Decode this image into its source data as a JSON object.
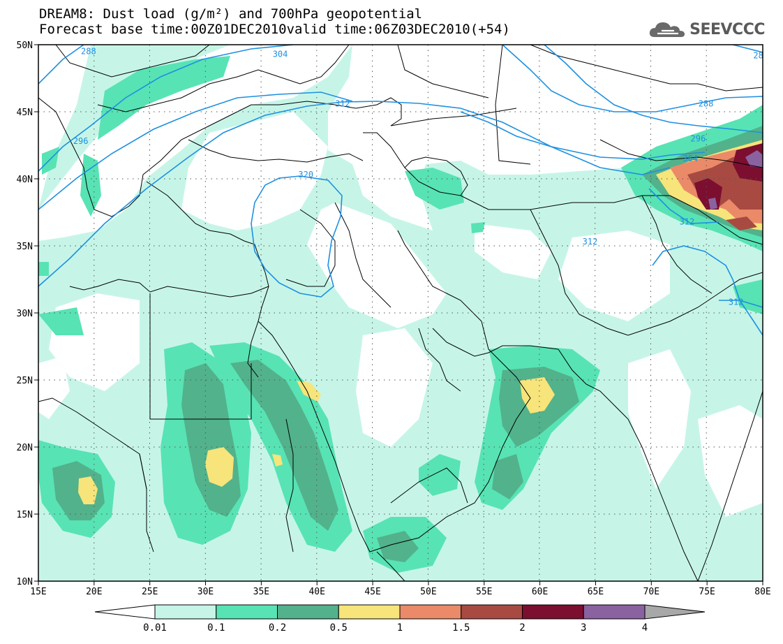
{
  "header": {
    "title_line1": "DREAM8: Dust load (g/m²) and 700hPa geopotential",
    "title_line2": "Forecast base time:00Z01DEC2010valid time:06Z03DEC2010(+54)",
    "logo_text": "SEEVCCC",
    "logo_icon": "cloud-icon"
  },
  "map": {
    "lon_range": [
      15,
      80
    ],
    "lat_range": [
      10,
      50
    ],
    "grid": "dotted",
    "lon_ticks": [
      "15E",
      "20E",
      "25E",
      "30E",
      "35E",
      "40E",
      "45E",
      "50E",
      "55E",
      "60E",
      "65E",
      "70E",
      "75E",
      "80E"
    ],
    "lat_ticks": [
      "10N",
      "15N",
      "20N",
      "25N",
      "30N",
      "35N",
      "40N",
      "45N",
      "50N"
    ],
    "contour_color": "#1e90e0",
    "contour_labels": [
      {
        "text": "288",
        "lon": 19.5,
        "lat": 49.5
      },
      {
        "text": "304",
        "lon": 36.7,
        "lat": 49.3
      },
      {
        "text": "28",
        "lon": 79.6,
        "lat": 49.2
      },
      {
        "text": "312",
        "lon": 42.3,
        "lat": 45.6
      },
      {
        "text": "288",
        "lon": 74.9,
        "lat": 45.6
      },
      {
        "text": "296",
        "lon": 18.8,
        "lat": 42.8
      },
      {
        "text": "296",
        "lon": 74.2,
        "lat": 43.0
      },
      {
        "text": "304",
        "lon": 73.5,
        "lat": 41.5
      },
      {
        "text": "320",
        "lon": 39.0,
        "lat": 40.3
      },
      {
        "text": "312",
        "lon": 73.2,
        "lat": 36.8
      },
      {
        "text": "312",
        "lon": 64.5,
        "lat": 35.3
      },
      {
        "text": "312",
        "lon": 77.6,
        "lat": 30.8
      }
    ]
  },
  "legend": {
    "levels": [
      "0.01",
      "0.1",
      "0.2",
      "0.5",
      "1",
      "1.5",
      "2",
      "3",
      "4"
    ],
    "colors": [
      "#ffffff",
      "#c6f5e8",
      "#58e3b4",
      "#52b28c",
      "#f7e47a",
      "#ea8a68",
      "#a84a42",
      "#7c0e30",
      "#8a62a0",
      "#a8a8a8"
    ]
  }
}
